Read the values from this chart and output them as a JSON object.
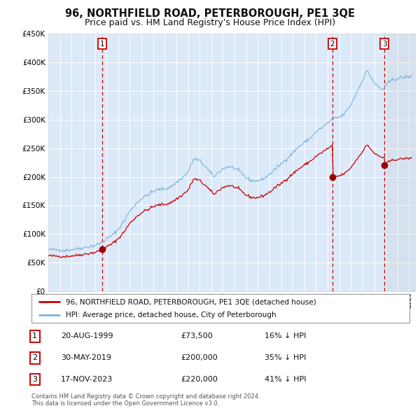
{
  "title": "96, NORTHFIELD ROAD, PETERBOROUGH, PE1 3QE",
  "subtitle": "Price paid vs. HM Land Registry's House Price Index (HPI)",
  "title_fontsize": 10.5,
  "subtitle_fontsize": 9,
  "bg_color": "#dce9f8",
  "hpi_color": "#7ab3e0",
  "price_color": "#cc0000",
  "sale_marker_color": "#990000",
  "vline_color": "#cc0000",
  "transactions": [
    {
      "date": 1999.64,
      "price": 73500,
      "label": "1"
    },
    {
      "date": 2019.41,
      "price": 200000,
      "label": "2"
    },
    {
      "date": 2023.88,
      "price": 220000,
      "label": "3"
    }
  ],
  "legend_entries": [
    "96, NORTHFIELD ROAD, PETERBOROUGH, PE1 3QE (detached house)",
    "HPI: Average price, detached house, City of Peterborough"
  ],
  "table_entries": [
    {
      "num": "1",
      "date": "20-AUG-1999",
      "price": "£73,500",
      "note": "16% ↓ HPI"
    },
    {
      "num": "2",
      "date": "30-MAY-2019",
      "price": "£200,000",
      "note": "35% ↓ HPI"
    },
    {
      "num": "3",
      "date": "17-NOV-2023",
      "price": "£220,000",
      "note": "41% ↓ HPI"
    }
  ],
  "footnote": "Contains HM Land Registry data © Crown copyright and database right 2024.\nThis data is licensed under the Open Government Licence v3.0.",
  "xmin": 1995.0,
  "xmax": 2026.5,
  "ymin": 0,
  "ymax": 450000,
  "yticks": [
    0,
    50000,
    100000,
    150000,
    200000,
    250000,
    300000,
    350000,
    400000,
    450000
  ]
}
